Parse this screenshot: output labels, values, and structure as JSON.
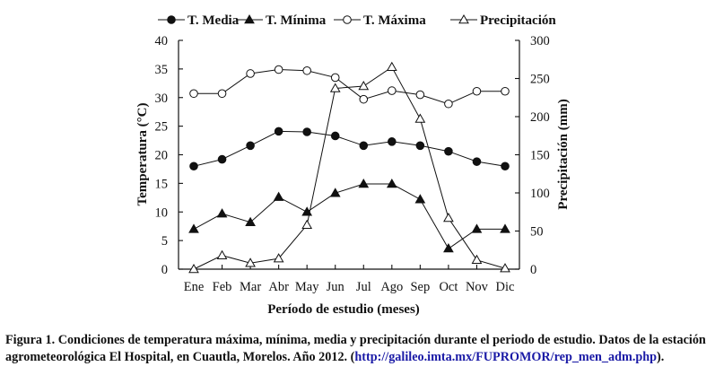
{
  "chart_data": {
    "type": "line",
    "xlabel": "Período de estudio (meses)",
    "ylabel": "Temperatura (°C)",
    "y2label": "Precipitación (mm)",
    "ylim": [
      0,
      40
    ],
    "y2lim": [
      0,
      300
    ],
    "yticks": [
      0,
      5,
      10,
      15,
      20,
      25,
      30,
      35,
      40
    ],
    "y2ticks": [
      0,
      50,
      100,
      150,
      200,
      250,
      300
    ],
    "categories": [
      "Ene",
      "Feb",
      "Mar",
      "Abr",
      "May",
      "Jun",
      "Jul",
      "Ago",
      "Sep",
      "Oct",
      "Nov",
      "Dic"
    ],
    "legend_position": "top",
    "series": [
      {
        "name": "T. Media",
        "axis": "left",
        "marker": "filled-circle",
        "values": [
          18.0,
          19.2,
          21.6,
          24.1,
          24.0,
          23.3,
          21.6,
          22.3,
          21.6,
          20.6,
          18.8,
          18.0
        ]
      },
      {
        "name": "T. Mínima",
        "axis": "left",
        "marker": "filled-triangle",
        "values": [
          7.0,
          9.7,
          8.2,
          12.6,
          10.0,
          13.3,
          14.9,
          14.9,
          12.2,
          3.6,
          7.0,
          7.0
        ]
      },
      {
        "name": "T. Máxima",
        "axis": "left",
        "marker": "open-circle",
        "values": [
          30.7,
          30.7,
          34.2,
          34.9,
          34.7,
          33.5,
          29.7,
          31.2,
          30.5,
          28.9,
          31.1,
          31.1
        ]
      },
      {
        "name": "Precipitación",
        "axis": "right",
        "marker": "open-triangle",
        "values": [
          0,
          18,
          8,
          14,
          58,
          237,
          240,
          265,
          197,
          67,
          12,
          1
        ]
      }
    ]
  },
  "caption": {
    "main": "Figura 1. Condiciones de temperatura máxima, mínima, media y precipitación durante el periodo de estudio. Datos de la estación agrometeorológica El Hospital, en Cuautla, Morelos. Año 2012. (",
    "link": "http://galileo.imta.mx/FUPROMOR/rep_men_adm.php",
    "end": ")."
  }
}
